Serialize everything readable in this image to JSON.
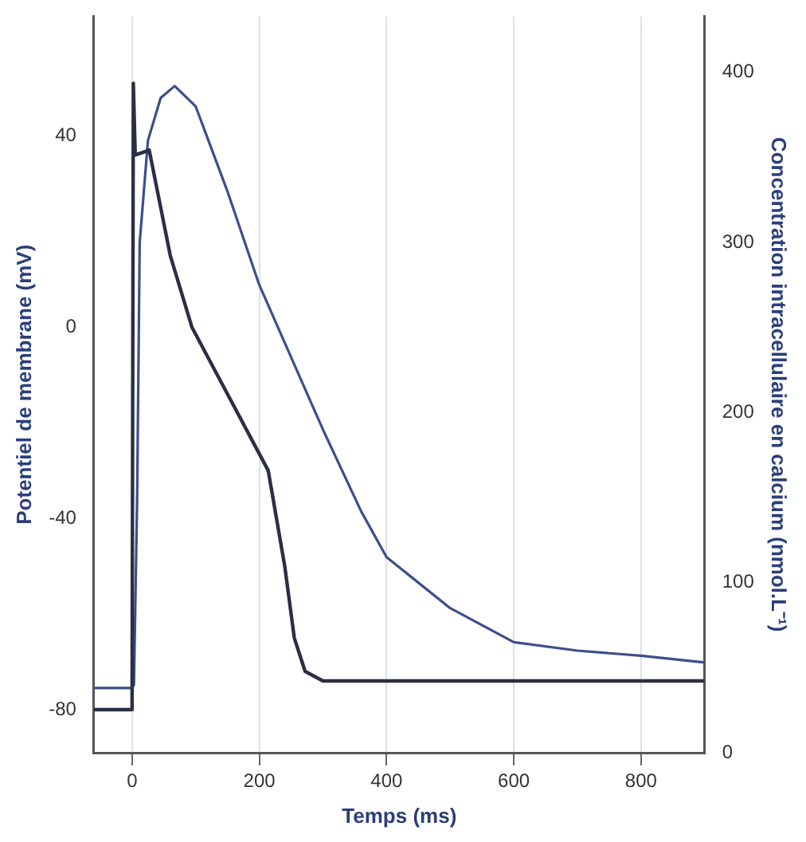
{
  "chart_data": {
    "type": "line",
    "xlabel": "Temps (ms)",
    "ylabel": "Potentiel de membrane (mV)",
    "y2label": "Concentration intracellulaire en calcium (nmol.L⁻¹)",
    "xlim": [
      -60,
      900
    ],
    "xticks": [
      0,
      200,
      400,
      600,
      800
    ],
    "ylim": [
      -89,
      65
    ],
    "yticks": [
      -80,
      -40,
      0,
      40
    ],
    "y2lim": [
      0,
      433
    ],
    "y2ticks": [
      0,
      100,
      200,
      300,
      400
    ],
    "grid": "x",
    "marker": "none",
    "line_style": "solid",
    "series": [
      {
        "color": "#2b2f45",
        "x": [
          -60,
          0,
          2,
          5,
          27,
          60,
          94,
          150,
          214,
          240,
          255,
          272,
          300,
          900
        ],
        "values": [
          -80,
          -80,
          51,
          36,
          37,
          15,
          0,
          -14,
          -30,
          -50,
          -65,
          -72,
          -74,
          -74
        ]
      },
      {
        "color": "#3b4f8a",
        "axis": "y2",
        "x": [
          -60,
          0,
          3,
          8,
          12,
          25,
          45,
          67,
          100,
          150,
          200,
          300,
          360,
          400,
          500,
          600,
          700,
          800,
          900
        ],
        "values": [
          38,
          38,
          40,
          150,
          300,
          360,
          385,
          392,
          380,
          330,
          275,
          190,
          142,
          115,
          85,
          65,
          60,
          57,
          53
        ]
      }
    ]
  }
}
